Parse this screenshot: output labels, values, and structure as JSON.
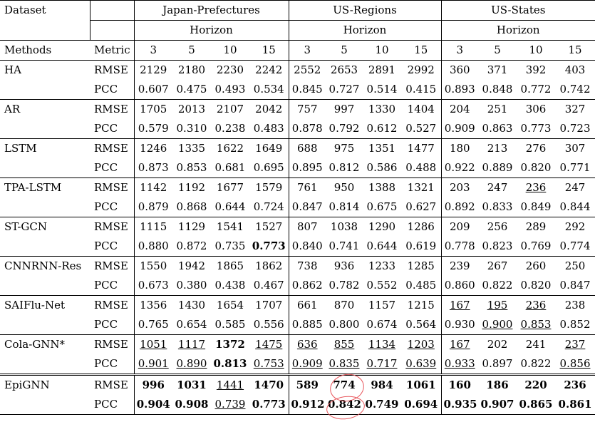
{
  "header": {
    "dataset_label": "Dataset",
    "datasets": [
      "Japan-Prefectures",
      "US-Regions",
      "US-States"
    ],
    "horizon_label": "Horizon",
    "methods_label": "Methods",
    "metric_label": "Metric",
    "horizons": [
      "3",
      "5",
      "10",
      "15",
      "3",
      "5",
      "10",
      "15",
      "3",
      "5",
      "10",
      "15"
    ]
  },
  "rows": [
    {
      "method": "HA",
      "rmse": [
        "2129",
        "2180",
        "2230",
        "2242",
        "2552",
        "2653",
        "2891",
        "2992",
        "360",
        "371",
        "392",
        "403"
      ],
      "pcc": [
        "0.607",
        "0.475",
        "0.493",
        "0.534",
        "0.845",
        "0.727",
        "0.514",
        "0.415",
        "0.893",
        "0.848",
        "0.772",
        "0.742"
      ]
    },
    {
      "method": "AR",
      "rmse": [
        "1705",
        "2013",
        "2107",
        "2042",
        "757",
        "997",
        "1330",
        "1404",
        "204",
        "251",
        "306",
        "327"
      ],
      "pcc": [
        "0.579",
        "0.310",
        "0.238",
        "0.483",
        "0.878",
        "0.792",
        "0.612",
        "0.527",
        "0.909",
        "0.863",
        "0.773",
        "0.723"
      ]
    },
    {
      "method": "LSTM",
      "rmse": [
        "1246",
        "1335",
        "1622",
        "1649",
        "688",
        "975",
        "1351",
        "1477",
        "180",
        "213",
        "276",
        "307"
      ],
      "pcc": [
        "0.873",
        "0.853",
        "0.681",
        "0.695",
        "0.895",
        "0.812",
        "0.586",
        "0.488",
        "0.922",
        "0.889",
        "0.820",
        "0.771"
      ]
    },
    {
      "method": "TPA-LSTM",
      "rmse": [
        "1142",
        "1192",
        "1677",
        "1579",
        "761",
        "950",
        "1388",
        "1321",
        "203",
        "247",
        "236",
        "247"
      ],
      "pcc": [
        "0.879",
        "0.868",
        "0.644",
        "0.724",
        "0.847",
        "0.814",
        "0.675",
        "0.627",
        "0.892",
        "0.833",
        "0.849",
        "0.844"
      ]
    },
    {
      "method": "ST-GCN",
      "rmse": [
        "1115",
        "1129",
        "1541",
        "1527",
        "807",
        "1038",
        "1290",
        "1286",
        "209",
        "256",
        "289",
        "292"
      ],
      "pcc": [
        "0.880",
        "0.872",
        "0.735",
        "0.773",
        "0.840",
        "0.741",
        "0.644",
        "0.619",
        "0.778",
        "0.823",
        "0.769",
        "0.774"
      ]
    },
    {
      "method": "CNNRNN-Res",
      "rmse": [
        "1550",
        "1942",
        "1865",
        "1862",
        "738",
        "936",
        "1233",
        "1285",
        "239",
        "267",
        "260",
        "250"
      ],
      "pcc": [
        "0.673",
        "0.380",
        "0.438",
        "0.467",
        "0.862",
        "0.782",
        "0.552",
        "0.485",
        "0.860",
        "0.822",
        "0.820",
        "0.847"
      ]
    },
    {
      "method": "SAIFlu-Net",
      "rmse": [
        "1356",
        "1430",
        "1654",
        "1707",
        "661",
        "870",
        "1157",
        "1215",
        "167",
        "195",
        "236",
        "238"
      ],
      "pcc": [
        "0.765",
        "0.654",
        "0.585",
        "0.556",
        "0.885",
        "0.800",
        "0.674",
        "0.564",
        "0.930",
        "0.900",
        "0.853",
        "0.852"
      ]
    },
    {
      "method": "Cola-GNN*",
      "rmse": [
        "1051",
        "1117",
        "1372",
        "1475",
        "636",
        "855",
        "1134",
        "1203",
        "167",
        "202",
        "241",
        "237"
      ],
      "pcc": [
        "0.901",
        "0.890",
        "0.813",
        "0.753",
        "0.909",
        "0.835",
        "0.717",
        "0.639",
        "0.933",
        "0.897",
        "0.822",
        "0.856"
      ]
    },
    {
      "method": "EpiGNN",
      "rmse": [
        "996",
        "1031",
        "1441",
        "1470",
        "589",
        "774",
        "984",
        "1061",
        "160",
        "186",
        "220",
        "236"
      ],
      "pcc": [
        "0.904",
        "0.908",
        "0.739",
        "0.773",
        "0.912",
        "0.842",
        "0.749",
        "0.694",
        "0.935",
        "0.907",
        "0.865",
        "0.861"
      ]
    }
  ],
  "metric_names": {
    "rmse": "RMSE",
    "pcc": "PCC"
  },
  "styles": {
    "underline": [
      "3.rmse.10",
      "6.rmse.8",
      "6.rmse.9",
      "6.rmse.10",
      "6.pcc.9",
      "6.pcc.10",
      "7.rmse.0",
      "7.rmse.1",
      "7.rmse.3",
      "7.rmse.4",
      "7.rmse.5",
      "7.rmse.6",
      "7.rmse.7",
      "7.rmse.8",
      "7.rmse.11",
      "7.pcc.0",
      "7.pcc.1",
      "7.pcc.3",
      "7.pcc.4",
      "7.pcc.5",
      "7.pcc.6",
      "7.pcc.7",
      "7.pcc.8",
      "7.pcc.11",
      "8.rmse.2",
      "8.pcc.2"
    ],
    "bold": [
      "4.pcc.3",
      "7.rmse.2",
      "7.pcc.2",
      "8.rmse.0",
      "8.rmse.1",
      "8.rmse.3",
      "8.rmse.4",
      "8.rmse.5",
      "8.rmse.6",
      "8.rmse.7",
      "8.rmse.8",
      "8.rmse.9",
      "8.rmse.10",
      "8.rmse.11",
      "8.pcc.0",
      "8.pcc.1",
      "8.pcc.3",
      "8.pcc.4",
      "8.pcc.5",
      "8.pcc.6",
      "8.pcc.7",
      "8.pcc.8",
      "8.pcc.9",
      "8.pcc.10",
      "8.pcc.11"
    ]
  },
  "annotation_color": "#e8565c"
}
